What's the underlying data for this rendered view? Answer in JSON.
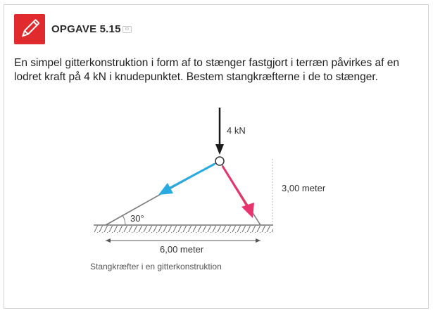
{
  "task": {
    "title": "OPGAVE 5.15",
    "badge": "ID",
    "icon": "pencil-icon",
    "accent_color": "#e02a2d",
    "text": "En simpel gitterkonstruktion i form af to stænger fastgjort i terræn påvirkes af en lodret kraft på 4 kN i knudepunktet. Bestem stangkræfterne i de to stænger."
  },
  "figure": {
    "force_label": "4 kN",
    "angle_label": "30°",
    "height_label": "3,00 meter",
    "width_label": "6,00 meter",
    "caption": "Stangkræfter i en gitterkonstruktion",
    "colors": {
      "left_bar": "#29abe2",
      "right_bar": "#e8336d",
      "load": "#1a1a1a"
    }
  }
}
